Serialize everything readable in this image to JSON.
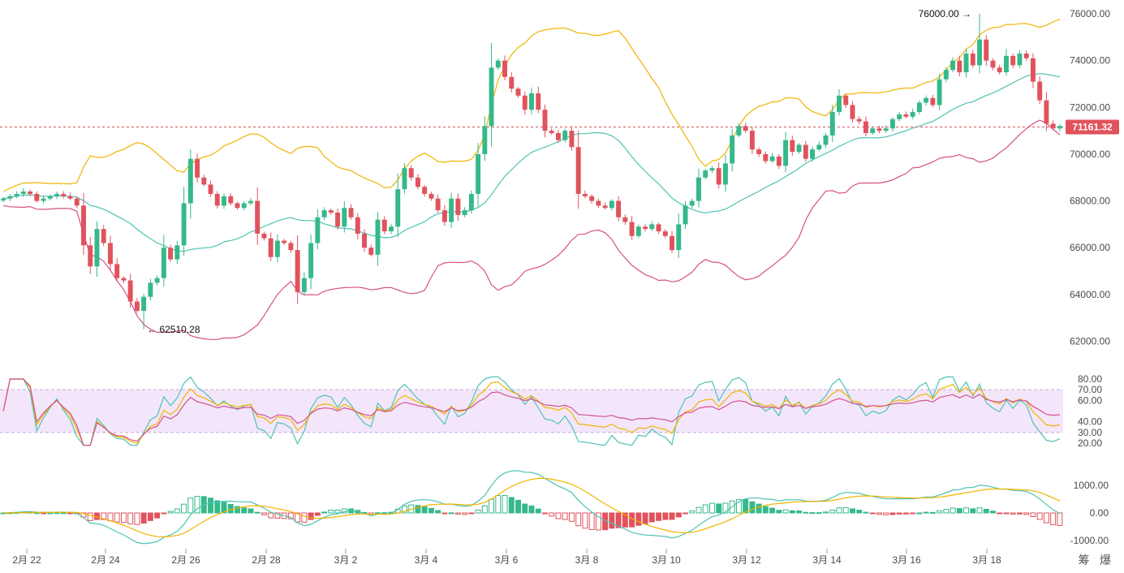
{
  "chart_data": {
    "type": "candlestick",
    "title": "",
    "price_axis": {
      "min": 61000,
      "max": 76300,
      "ticks": [
        "76000.00",
        "74000.00",
        "72000.00",
        "70000.00",
        "68000.00",
        "66000.00",
        "64000.00",
        "62000.00"
      ]
    },
    "rsi_axis": {
      "ticks": [
        "80.00",
        "70.00",
        "60.00",
        "40.00",
        "30.00",
        "20.00"
      ],
      "band": [
        30,
        70
      ]
    },
    "macd_axis": {
      "ticks": [
        "1000.00",
        "0.00",
        "-1000.00"
      ]
    },
    "dates": [
      "2月 22",
      "2月 24",
      "2月 26",
      "2月 28",
      "3月 2",
      "3月 4",
      "3月 6",
      "3月 8",
      "3月 10",
      "3月 12",
      "3月 14",
      "3月 16",
      "3月 18"
    ],
    "current_price": "71161.32",
    "annotations": {
      "high": "76000.00",
      "low": "62510.28"
    },
    "close_series": [
      68100,
      68200,
      68300,
      68400,
      68300,
      68000,
      68100,
      68200,
      68300,
      68200,
      68100,
      67800,
      66100,
      65200,
      66800,
      66200,
      65300,
      64700,
      64600,
      63700,
      63300,
      63900,
      64500,
      64700,
      66000,
      65500,
      66100,
      67900,
      69800,
      69000,
      68700,
      68300,
      67800,
      68200,
      67900,
      67700,
      67900,
      68000,
      66600,
      66400,
      65600,
      66300,
      66200,
      65900,
      64100,
      64700,
      66200,
      67300,
      67600,
      67500,
      66900,
      67700,
      67300,
      66600,
      66000,
      65700,
      67200,
      66700,
      66900,
      68500,
      69400,
      69000,
      68600,
      68300,
      68100,
      67600,
      67100,
      68100,
      67400,
      67600,
      68300,
      70000,
      71200,
      73700,
      74000,
      73300,
      72800,
      72500,
      71900,
      72600,
      71900,
      71000,
      70900,
      70600,
      71000,
      70300,
      68300,
      68200,
      68000,
      67800,
      67700,
      68000,
      67300,
      67100,
      66500,
      66900,
      66800,
      67000,
      66700,
      66500,
      65900,
      67000,
      67800,
      68000,
      69000,
      69300,
      69400,
      68700,
      69600,
      70800,
      71200,
      71000,
      70200,
      70000,
      69700,
      69900,
      69500,
      70600,
      70100,
      70400,
      69800,
      70200,
      70400,
      70800,
      71800,
      72500,
      72100,
      71500,
      71400,
      70900,
      71100,
      71000,
      71100,
      71500,
      71700,
      71600,
      71800,
      72200,
      72400,
      72100,
      73200,
      73600,
      74000,
      73500,
      74300,
      73800,
      74900,
      74000,
      73700,
      73500,
      74200,
      73800,
      74300,
      74100,
      73100,
      72300,
      71300,
      71100,
      71200
    ]
  },
  "ui": {
    "watermark": "筹 爆"
  }
}
